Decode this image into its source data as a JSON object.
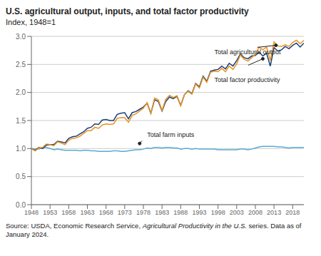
{
  "chart_data": {
    "type": "line",
    "title": "U.S. agricultural output, inputs, and total factor productivity",
    "subtitle": "Index, 1948=1",
    "source": [
      "Source: USDA, Economic Research Service, ",
      "Agricultural Productivity in the U.S.",
      "series. Data as of January 2024."
    ],
    "x": [
      1948,
      1949,
      1950,
      1951,
      1952,
      1953,
      1954,
      1955,
      1956,
      1957,
      1958,
      1959,
      1960,
      1961,
      1962,
      1963,
      1964,
      1965,
      1966,
      1967,
      1968,
      1969,
      1970,
      1971,
      1972,
      1973,
      1974,
      1975,
      1976,
      1977,
      1978,
      1979,
      1980,
      1981,
      1982,
      1983,
      1984,
      1985,
      1986,
      1987,
      1988,
      1989,
      1990,
      1991,
      1992,
      1993,
      1994,
      1995,
      1996,
      1997,
      1998,
      1999,
      2000,
      2001,
      2002,
      2003,
      2004,
      2005,
      2006,
      2007,
      2008,
      2009,
      2010,
      2011,
      2012,
      2013,
      2014,
      2015,
      2016,
      2017,
      2018,
      2019,
      2020,
      2021
    ],
    "series": [
      {
        "color": "#5aaad4",
        "values": [
          1.0,
          0.99,
          0.99,
          1.02,
          1.02,
          1.0,
          0.98,
          0.99,
          0.98,
          0.97,
          0.97,
          0.97,
          0.97,
          0.96,
          0.97,
          0.97,
          0.96,
          0.96,
          0.95,
          0.95,
          0.95,
          0.95,
          0.96,
          0.96,
          0.95,
          0.95,
          0.96,
          0.97,
          0.98,
          0.98,
          0.99,
          1.01,
          1.0,
          1.02,
          1.02,
          1.01,
          1.02,
          1.02,
          1.01,
          1.01,
          0.99,
          1.0,
          1.0,
          0.99,
          1.0,
          0.99,
          0.99,
          0.99,
          0.99,
          0.99,
          0.98,
          0.98,
          0.98,
          0.98,
          0.98,
          0.98,
          0.99,
          0.99,
          0.98,
          0.99,
          1.01,
          1.03,
          1.04,
          1.04,
          1.04,
          1.04,
          1.03,
          1.03,
          1.02,
          1.01,
          1.02,
          1.02,
          1.02,
          1.02
        ]
      },
      {
        "color": "#1b3f7a",
        "values": [
          1.0,
          0.97,
          1.02,
          1.0,
          1.06,
          1.07,
          1.07,
          1.13,
          1.12,
          1.1,
          1.18,
          1.21,
          1.22,
          1.26,
          1.3,
          1.36,
          1.38,
          1.44,
          1.43,
          1.51,
          1.52,
          1.5,
          1.5,
          1.61,
          1.63,
          1.64,
          1.53,
          1.64,
          1.66,
          1.7,
          1.74,
          1.81,
          1.63,
          1.87,
          1.84,
          1.67,
          1.84,
          1.92,
          1.89,
          1.93,
          1.77,
          1.96,
          2.03,
          1.98,
          2.16,
          2.1,
          2.29,
          2.2,
          2.38,
          2.4,
          2.41,
          2.47,
          2.42,
          2.52,
          2.47,
          2.57,
          2.69,
          2.62,
          2.6,
          2.65,
          2.66,
          2.72,
          2.65,
          2.7,
          2.47,
          2.8,
          2.74,
          2.76,
          2.82,
          2.78,
          2.84,
          2.88,
          2.81,
          2.88
        ]
      },
      {
        "color": "#e8931e",
        "values": [
          1.0,
          0.96,
          1.01,
          1.02,
          1.08,
          1.07,
          1.05,
          1.12,
          1.1,
          1.07,
          1.15,
          1.18,
          1.19,
          1.22,
          1.27,
          1.32,
          1.32,
          1.38,
          1.36,
          1.42,
          1.44,
          1.43,
          1.44,
          1.54,
          1.55,
          1.55,
          1.47,
          1.59,
          1.62,
          1.67,
          1.72,
          1.82,
          1.62,
          1.9,
          1.87,
          1.68,
          1.88,
          1.95,
          1.91,
          1.94,
          1.76,
          1.96,
          2.02,
          1.97,
          2.15,
          2.08,
          2.27,
          2.18,
          2.36,
          2.38,
          2.37,
          2.43,
          2.37,
          2.47,
          2.41,
          2.51,
          2.67,
          2.59,
          2.56,
          2.62,
          2.68,
          2.81,
          2.76,
          2.81,
          2.57,
          2.9,
          2.83,
          2.82,
          2.85,
          2.82,
          2.89,
          2.93,
          2.87,
          2.93
        ]
      }
    ],
    "xlim": [
      1948,
      2021
    ],
    "xticks": [
      1948,
      1953,
      1958,
      1963,
      1968,
      1973,
      1978,
      1983,
      1988,
      1993,
      1998,
      2003,
      2008,
      2013,
      2018
    ],
    "ylim": [
      0.0,
      3.0
    ],
    "yticks": [
      {
        "value": 0.0,
        "label": "0.0"
      },
      {
        "value": 0.5,
        "label": "0.5"
      },
      {
        "value": 1.0,
        "label": "1.0"
      },
      {
        "value": 1.5,
        "label": "1.5"
      },
      {
        "value": 2.0,
        "label": "2.0"
      },
      {
        "value": 2.5,
        "label": "2.5"
      },
      {
        "value": 3.0,
        "label": "3.0"
      }
    ],
    "grid": true,
    "annotations": [
      {
        "text": "Total agricultural output",
        "x": 2013.5,
        "y": 2.84,
        "text_x": 1997,
        "text_y": 2.72
      },
      {
        "text": "Total factor productivity",
        "x": 2010,
        "y": 2.6,
        "text_x": 1997,
        "text_y": 2.22
      },
      {
        "text": "Total farm inputs",
        "x": 1977,
        "y": 1.09,
        "text_x": 1979,
        "text_y": 1.25
      }
    ]
  }
}
